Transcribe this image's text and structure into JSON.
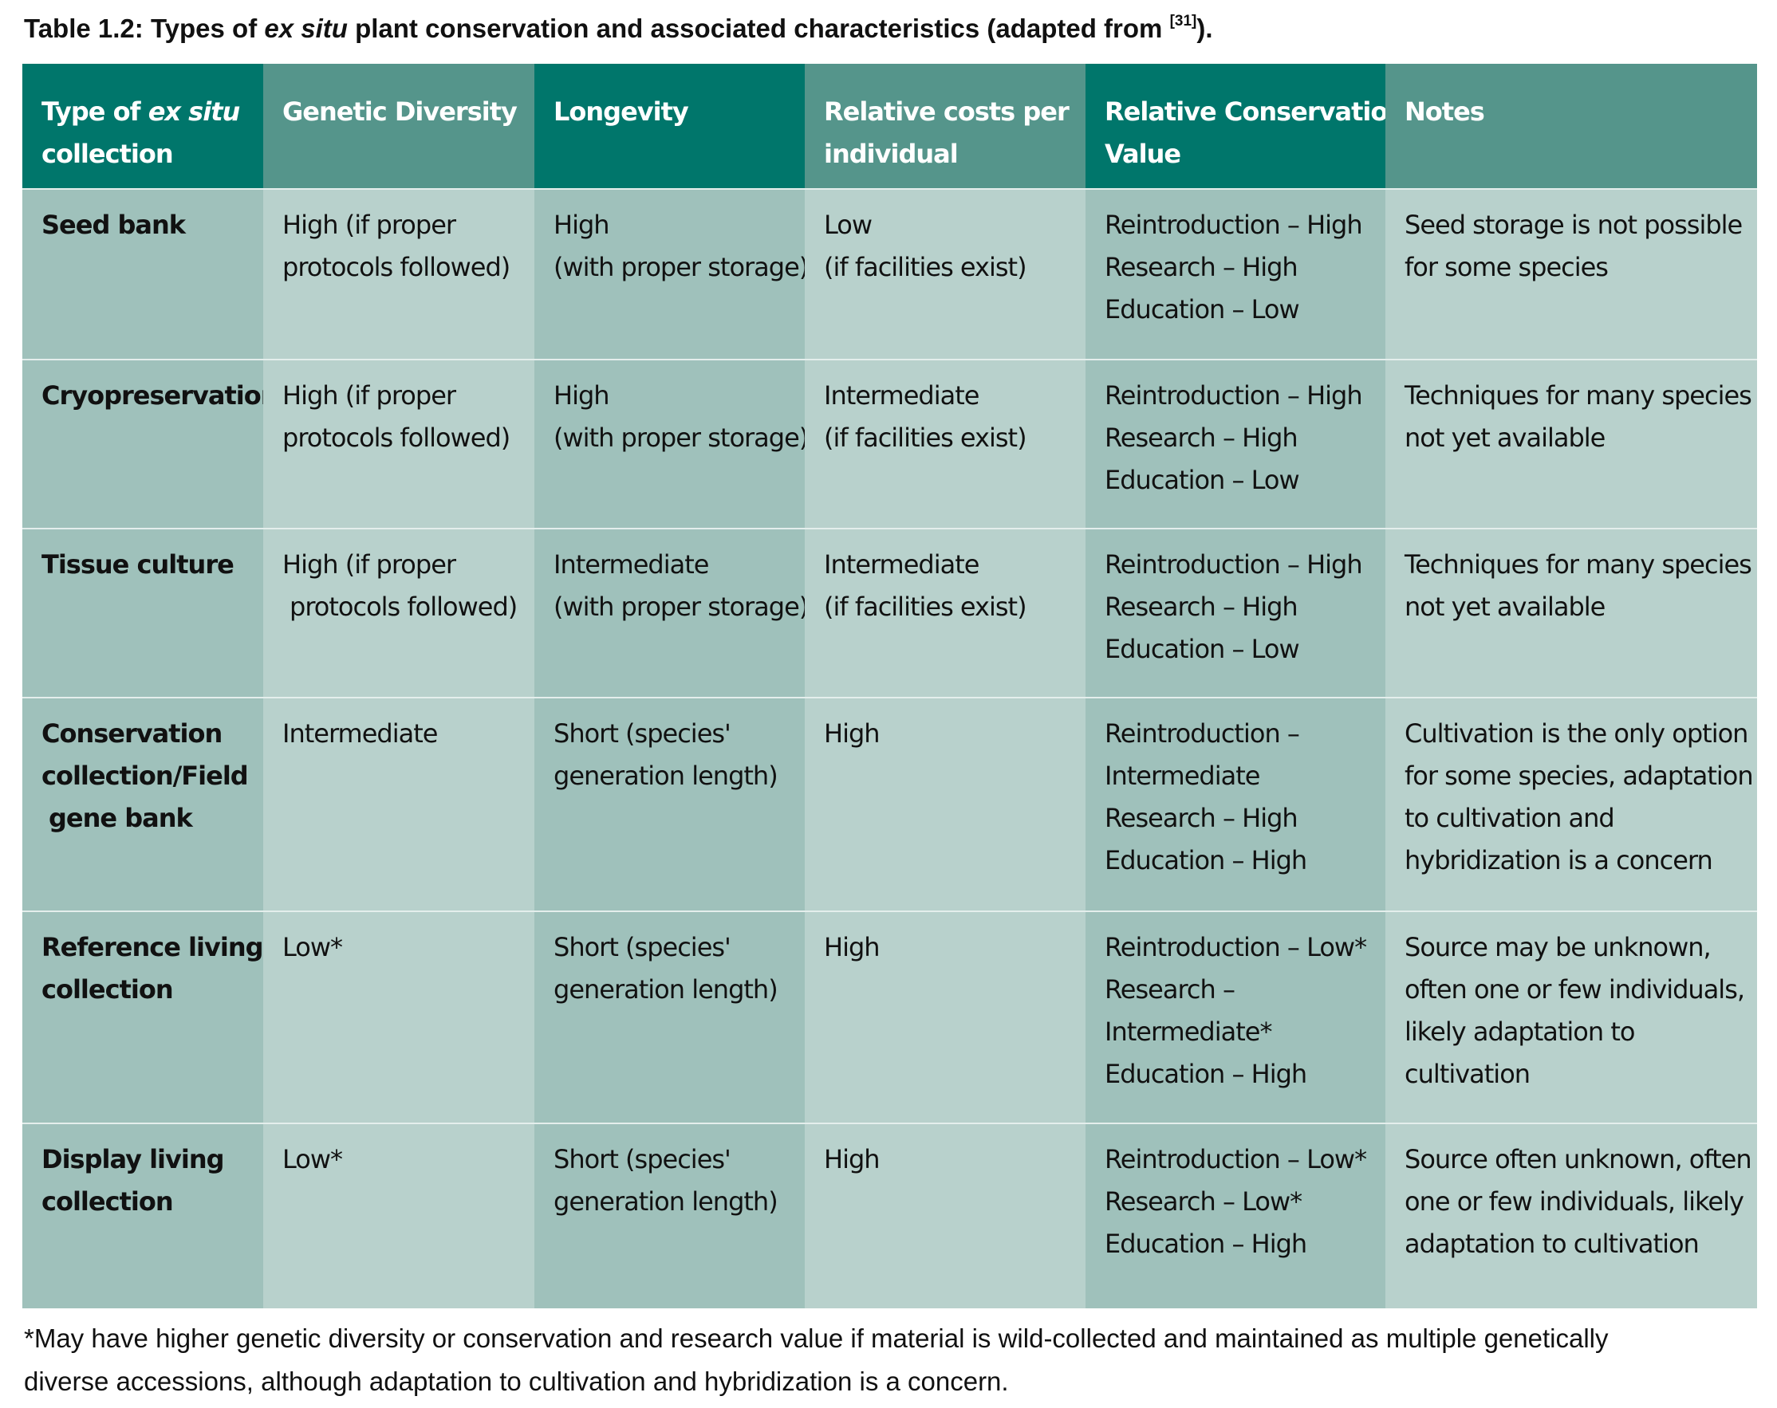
{
  "caption": {
    "prefix": "Table 1.2: Types of ",
    "italic": "ex situ",
    "middle": " plant conservation and associated characteristics (adapted from ",
    "ref": "[31]",
    "suffix": ")."
  },
  "header": {
    "col1_pre": "Type of ",
    "col1_italic": "ex situ",
    "col1_post": "collection",
    "col2": "Genetic Diversity",
    "col3": "Longevity",
    "col4_l1": "Relative costs per",
    "col4_l2": "individual",
    "col5_l1": "Relative Conservation",
    "col5_l2": "Value",
    "col6": "Notes"
  },
  "rows": [
    {
      "type": [
        "Seed bank"
      ],
      "diversity": [
        "High (if proper",
        "protocols followed)"
      ],
      "longevity": [
        "High",
        "(with proper storage)"
      ],
      "cost": [
        "Low",
        "(if facilities exist)"
      ],
      "value": [
        "Reintroduction – High",
        "Research – High",
        "Education – Low"
      ],
      "notes": [
        "Seed storage is not possible",
        "for some species"
      ]
    },
    {
      "type": [
        "Cryopreservation"
      ],
      "diversity": [
        "High (if proper",
        "protocols followed)"
      ],
      "longevity": [
        "High",
        "(with proper storage)"
      ],
      "cost": [
        "Intermediate",
        "(if facilities exist)"
      ],
      "value": [
        "Reintroduction – High",
        "Research – High",
        "Education – Low"
      ],
      "notes": [
        "Techniques for many species",
        "not yet available"
      ]
    },
    {
      "type": [
        "Tissue culture"
      ],
      "diversity": [
        "High (if proper",
        " protocols followed)"
      ],
      "longevity": [
        "Intermediate",
        "(with proper storage)"
      ],
      "cost": [
        "Intermediate",
        "(if facilities exist)"
      ],
      "value": [
        "Reintroduction – High",
        "Research – High",
        "Education – Low"
      ],
      "notes": [
        "Techniques for many species",
        "not yet available"
      ]
    },
    {
      "type": [
        "Conservation",
        "collection/Field",
        " gene bank"
      ],
      "diversity": [
        "Intermediate"
      ],
      "longevity": [
        "Short (species'",
        "generation length)"
      ],
      "cost": [
        "High"
      ],
      "value": [
        "Reintroduction –",
        "Intermediate",
        "Research – High",
        "Education – High"
      ],
      "notes": [
        "Cultivation is the only option",
        "for some species, adaptation",
        "to cultivation and",
        "hybridization is a concern"
      ]
    },
    {
      "type": [
        "Reference living",
        "collection"
      ],
      "diversity": [
        "Low*"
      ],
      "longevity": [
        "Short (species'",
        "generation length)"
      ],
      "cost": [
        "High"
      ],
      "value": [
        "Reintroduction – Low*",
        "Research –",
        "Intermediate*",
        "Education – High"
      ],
      "notes": [
        "Source may be unknown,",
        "often one or few individuals,",
        "likely adaptation to",
        "cultivation"
      ]
    },
    {
      "type": [
        "Display living",
        "collection"
      ],
      "diversity": [
        "Low*"
      ],
      "longevity": [
        "Short (species'",
        "generation length)"
      ],
      "cost": [
        "High"
      ],
      "value": [
        "Reintroduction – Low*",
        "Research – Low*",
        "Education – High"
      ],
      "notes": [
        "Source often unknown, often",
        "one or few individuals, likely",
        "adaptation to cultivation"
      ]
    }
  ],
  "footnote": {
    "line1": "*May have higher genetic diversity or conservation and research value if material is wild-collected and maintained as multiple genetically",
    "line2": "diverse accessions, although adaptation to cultivation and hybridization is a concern."
  },
  "colors": {
    "header_dark": "#00766b",
    "header_light": "#55958b",
    "body_dark": "#9fc1bb",
    "body_light": "#b8d1cc"
  }
}
